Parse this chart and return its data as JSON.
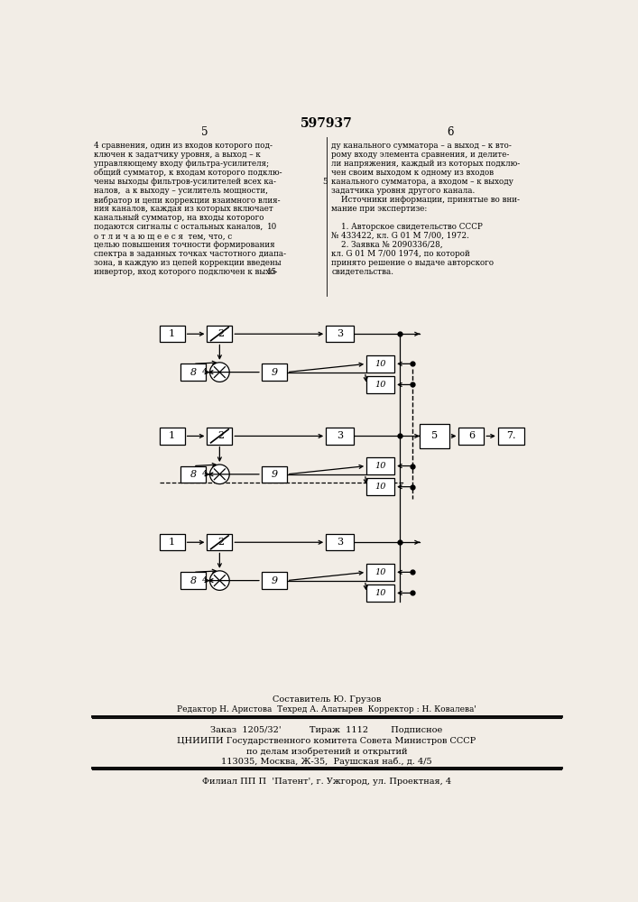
{
  "bg_color": "#f2ede6",
  "title": "597937",
  "left_text_lines": [
    "4 сравнения, один из входов которого под-",
    "ключен к задатчику уровня, а выход – к",
    "управляющему входу фильтра-усилителя;",
    "общий сумматор, к входам которого подклю-",
    "чены выходы фильтров-усилителей всех ка-",
    "налов,  а к выходу – усилитель мощности,",
    "вибратор и цепи коррекции взаимного влия-",
    "ния каналов, каждая из которых включает",
    "канальный сумматор, на входы которого",
    "подаются сигналы с остальных каналов,",
    "о т л и ч а ю щ е е с я  тем, что, с",
    "целью повышения точности формирования",
    "спектра в заданных точках частотного диапа-",
    "зона, в каждую из цепей коррекции введены",
    "инвертор, вход которого подключен к выхо-"
  ],
  "right_text_lines": [
    "ду канального сумматора – а выход – к вто-",
    "рому входу элемента сравнения, и делите-",
    "ли напряжения, каждый из которых подклю-",
    "чен своим выходом к одному из входов",
    "канального сумматора, а входом – к выходу",
    "задатчика уровня другого канала.",
    "    Источники информации, принятые во вни-",
    "мание при экспертизе:",
    "",
    "    1. Авторское свидетельство СССР",
    "№ 433422, кл. G 01 M 7/00, 1972.",
    "    2. Заявка № 2090336/28,",
    "кл. G 01 M 7/00 1974, по которой ",
    "принято решение о выдаче авторского",
    "свидетельства."
  ],
  "bottom_composer": "Составитель Ю. Грузов",
  "bottom_editor": "Редактор Н. Аристова  Техред А. Алатырев  Корректор : Н. Ковалева'",
  "bottom_order": "Заказ  1205/32'          Тираж  1112        Подписное",
  "bottom_org": "ЦНИИПИ Государственного комитета Совета Министров СССР",
  "bottom_dept": "по делам изобретений и открытий",
  "bottom_addr": "113035, Москва, Ж-35,  Раушская наб., д. 4/5",
  "bottom_branch": "Филиал ПП П  'Патент', г. Ужгород, ул. Проектная, 4"
}
